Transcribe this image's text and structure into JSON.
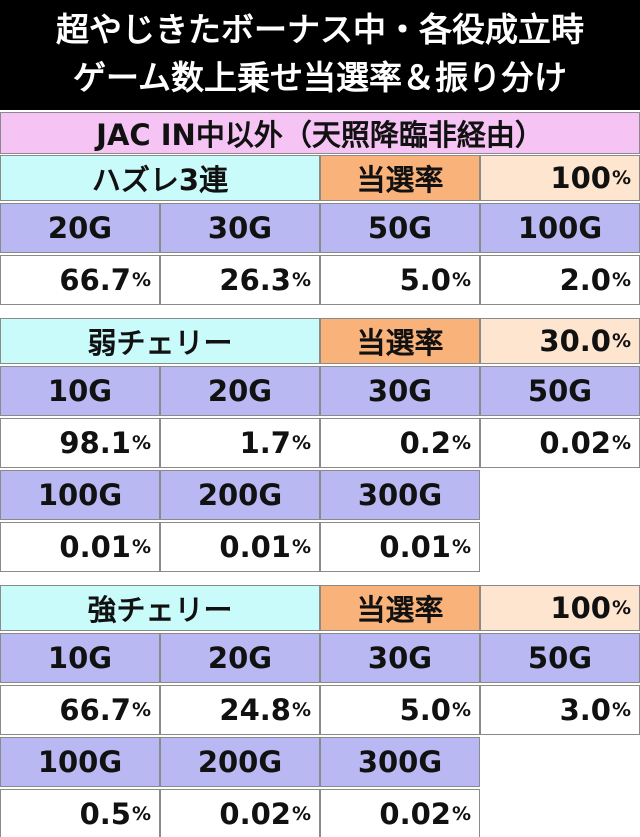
{
  "header": {
    "lines": [
      "超やじきたボーナス中・各役成立時",
      "ゲーム数上乗せ当選率＆振り分け"
    ]
  },
  "subheader": "JAC IN中以外（天照降臨非経由）",
  "sections": [
    {
      "name": "ハズレ3連",
      "rate_label": "当選率",
      "rate": {
        "num": "100",
        "unit": "%"
      },
      "groups": [
        {
          "games": [
            "20G",
            "30G",
            "50G",
            "100G"
          ],
          "percents": [
            {
              "num": "66.7",
              "unit": "%"
            },
            {
              "num": "26.3",
              "unit": "%"
            },
            {
              "num": "5.0",
              "unit": "%"
            },
            {
              "num": "2.0",
              "unit": "%"
            }
          ]
        }
      ]
    },
    {
      "name": "弱チェリー",
      "rate_label": "当選率",
      "rate": {
        "num": "30.0",
        "unit": "%"
      },
      "groups": [
        {
          "games": [
            "10G",
            "20G",
            "30G",
            "50G"
          ],
          "percents": [
            {
              "num": "98.1",
              "unit": "%"
            },
            {
              "num": "1.7",
              "unit": "%"
            },
            {
              "num": "0.2",
              "unit": "%"
            },
            {
              "num": "0.02",
              "unit": "%"
            }
          ]
        },
        {
          "games": [
            "100G",
            "200G",
            "300G"
          ],
          "percents": [
            {
              "num": "0.01",
              "unit": "%"
            },
            {
              "num": "0.01",
              "unit": "%"
            },
            {
              "num": "0.01",
              "unit": "%"
            }
          ]
        }
      ]
    },
    {
      "name": "強チェリー",
      "rate_label": "当選率",
      "rate": {
        "num": "100",
        "unit": "%"
      },
      "groups": [
        {
          "games": [
            "10G",
            "20G",
            "30G",
            "50G"
          ],
          "percents": [
            {
              "num": "66.7",
              "unit": "%"
            },
            {
              "num": "24.8",
              "unit": "%"
            },
            {
              "num": "5.0",
              "unit": "%"
            },
            {
              "num": "3.0",
              "unit": "%"
            }
          ]
        },
        {
          "games": [
            "100G",
            "200G",
            "300G"
          ],
          "percents": [
            {
              "num": "0.5",
              "unit": "%"
            },
            {
              "num": "0.02",
              "unit": "%"
            },
            {
              "num": "0.02",
              "unit": "%"
            }
          ]
        }
      ]
    }
  ]
}
